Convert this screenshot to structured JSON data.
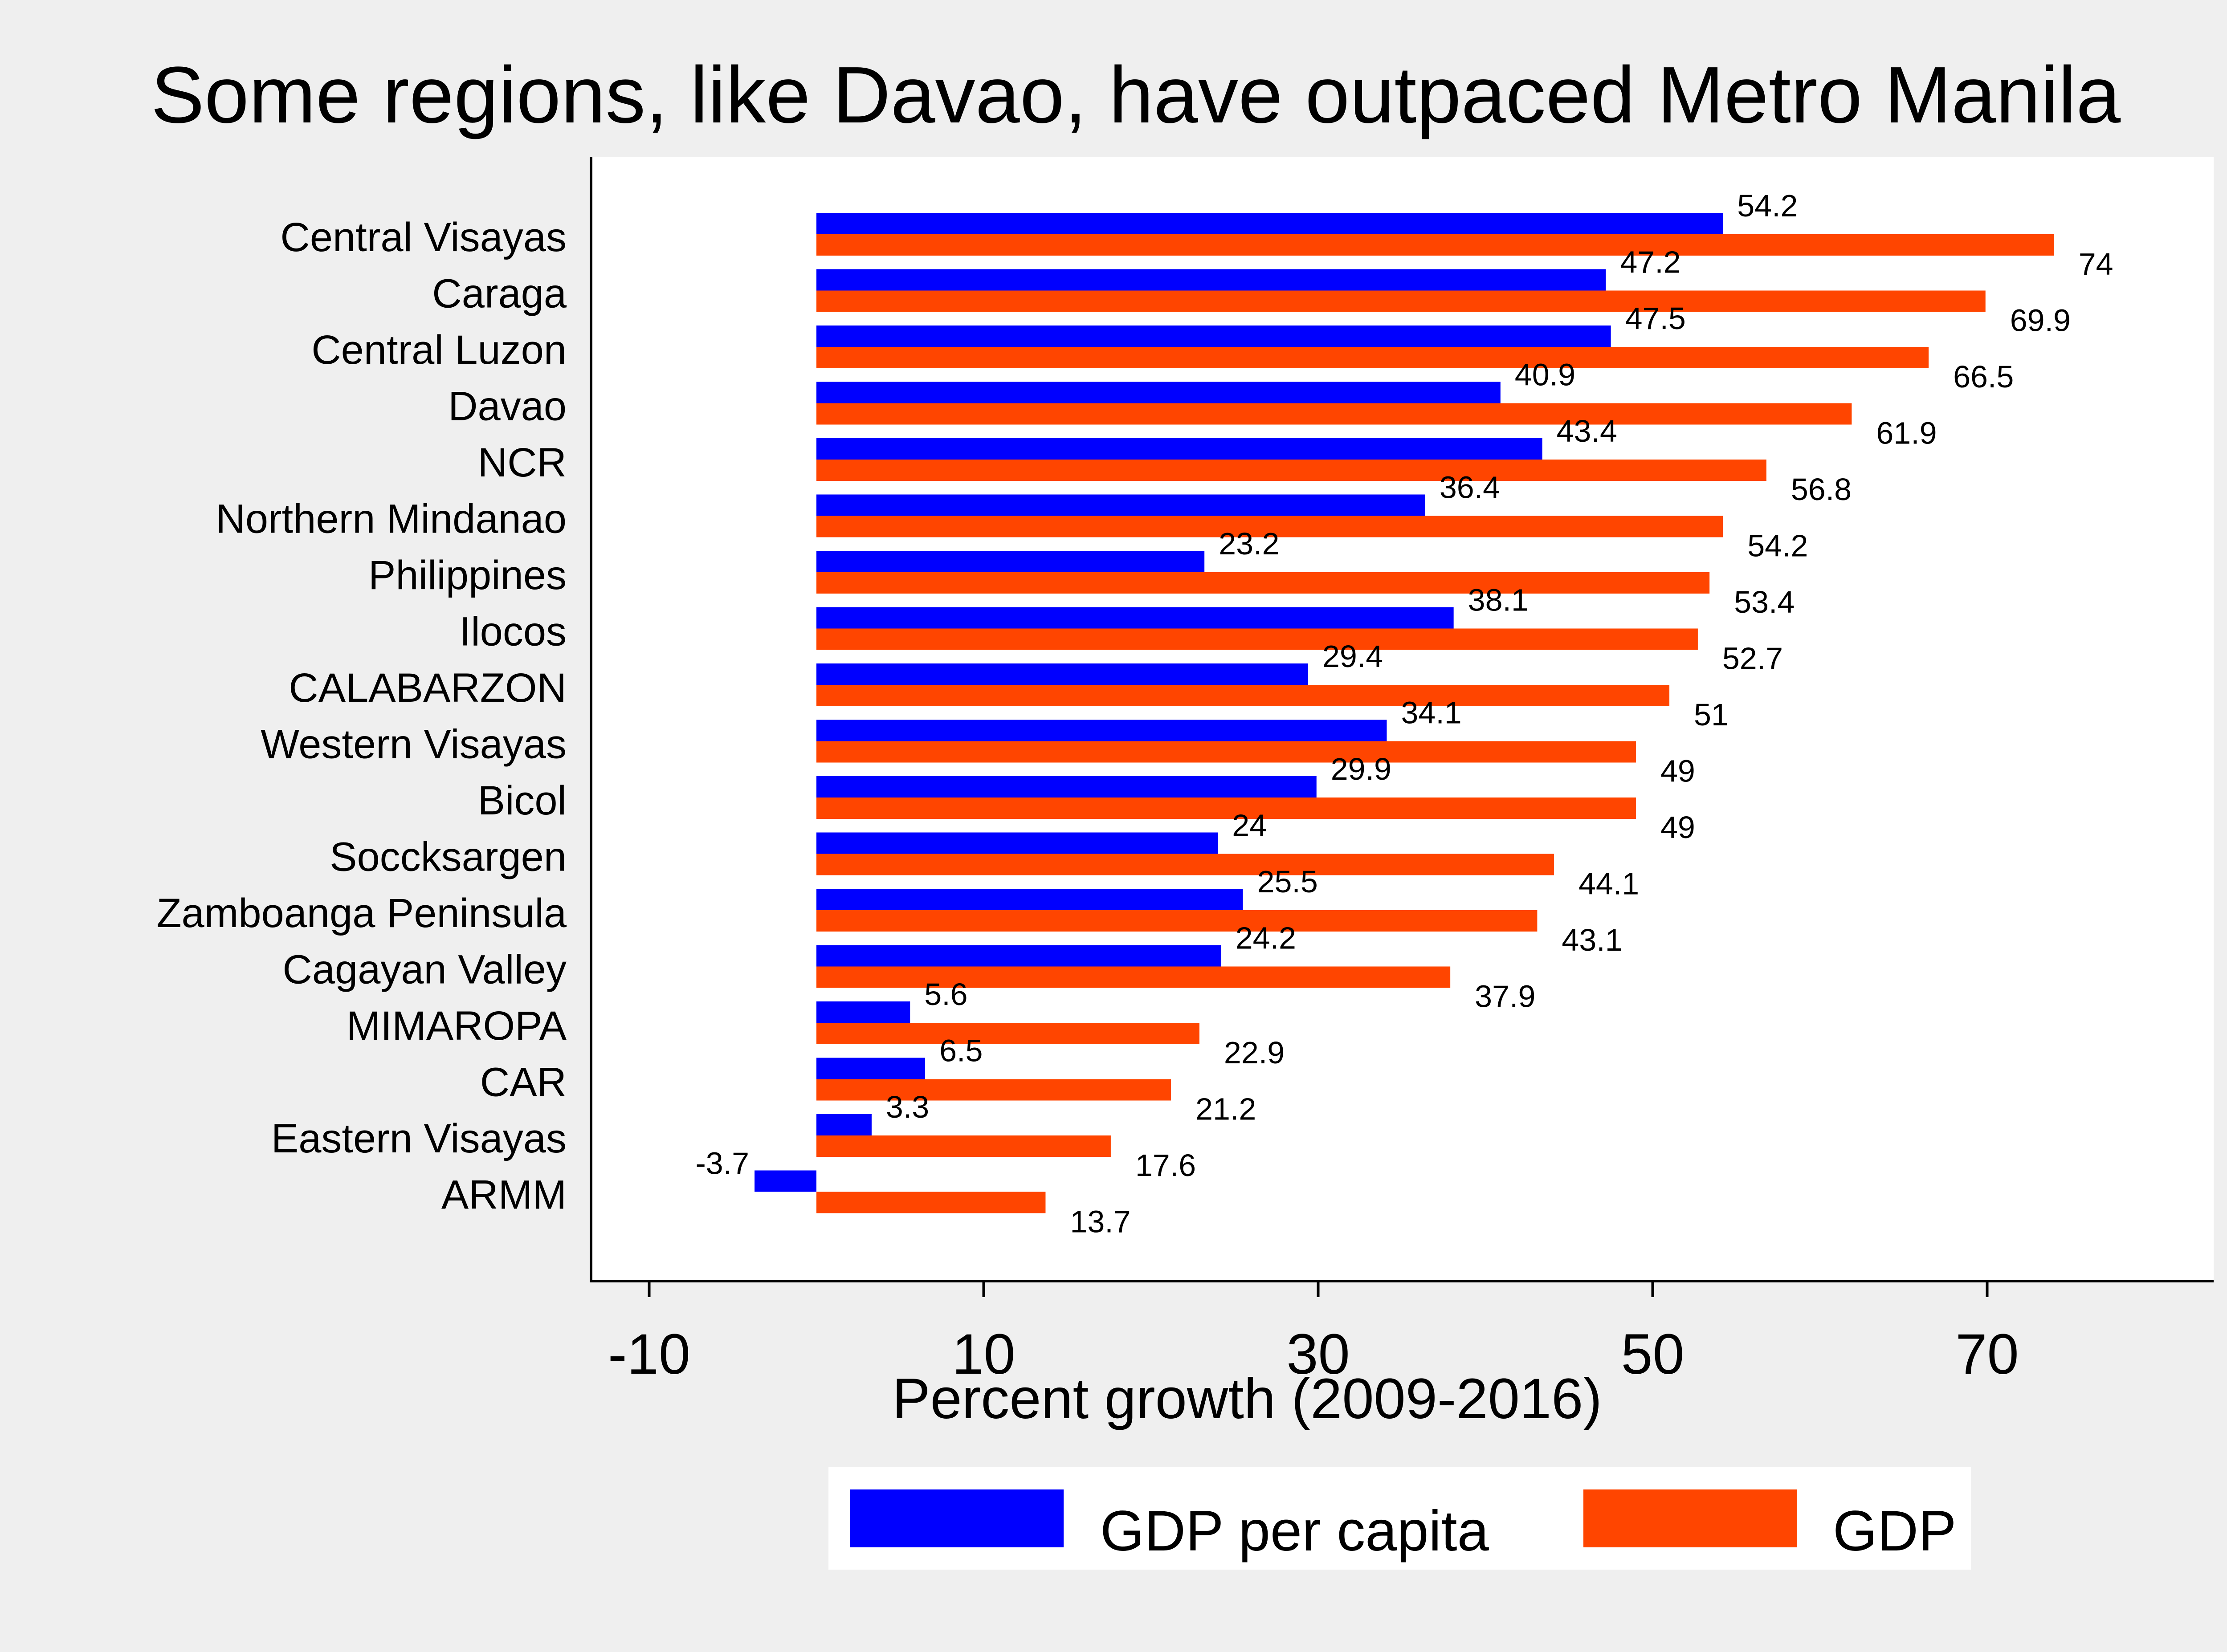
{
  "chart_data": {
    "type": "bar",
    "orientation": "horizontal",
    "title": "Some regions, like Davao, have outpaced Metro Manila",
    "xlabel": "Percent growth (2009-2016)",
    "ylabel": "",
    "xlim": [
      -10,
      80
    ],
    "xticks": [
      -10,
      10,
      30,
      50,
      70
    ],
    "grid": false,
    "legend_position": "bottom",
    "categories": [
      "Central Visayas",
      "Caraga",
      "Central Luzon",
      "Davao",
      "NCR",
      "Northern Mindanao",
      "Philippines",
      "Ilocos",
      "CALABARZON",
      "Western Visayas",
      "Bicol",
      "Soccksargen",
      "Zamboanga Peninsula",
      "Cagayan Valley",
      "MIMAROPA",
      "CAR",
      "Eastern Visayas",
      "ARMM"
    ],
    "series": [
      {
        "name": "GDP per capita",
        "color": "#0000ff",
        "values": [
          54.2,
          47.2,
          47.5,
          40.9,
          43.4,
          36.4,
          23.2,
          38.1,
          29.4,
          34.1,
          29.9,
          24,
          25.5,
          24.2,
          5.6,
          6.5,
          3.3,
          -3.7
        ]
      },
      {
        "name": "GDP",
        "color": "#ff4500",
        "values": [
          74,
          69.9,
          66.5,
          61.9,
          56.8,
          54.2,
          53.4,
          52.7,
          51,
          49,
          49,
          44.1,
          43.1,
          37.9,
          22.9,
          21.2,
          17.6,
          13.7
        ]
      }
    ]
  },
  "colors": {
    "background": "#efefef",
    "plot_background": "#ffffff",
    "axis": "#000000"
  }
}
